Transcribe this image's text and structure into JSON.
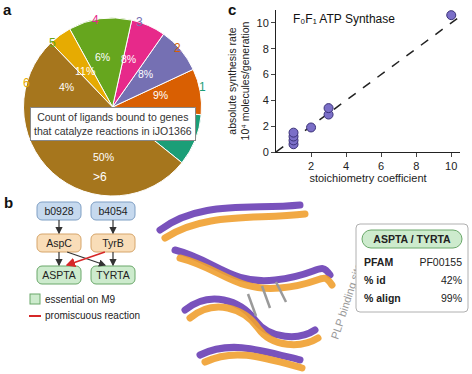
{
  "chart_data": [
    {
      "type": "pie",
      "panel": "a",
      "categories": [
        "1",
        "2",
        "3",
        "4",
        "5",
        "6",
        ">6"
      ],
      "values": [
        9,
        8,
        8,
        6,
        11,
        4,
        50
      ],
      "value_labels": [
        "9%",
        "8%",
        "8%",
        "6%",
        "11%",
        "4%",
        "50%"
      ],
      "colors": [
        "#1b9e77",
        "#d95f02",
        "#7570b3",
        "#e7298a",
        "#66a61e",
        "#e6ab02",
        "#a6761d"
      ],
      "annotations": [
        "Count of ligands bound to genes",
        "that catalyze reactions in iJO1366"
      ]
    },
    {
      "type": "scatter",
      "panel": "c",
      "title": "F₀F₁ ATP Synthase",
      "x": [
        1,
        1,
        1,
        1,
        2,
        3,
        3,
        10
      ],
      "values": [
        0.6,
        0.9,
        1.2,
        1.5,
        1.9,
        2.9,
        3.4,
        10.6
      ],
      "xlabel": "stoichiometry coefficient",
      "ylabel": [
        "absolute synthesis rate",
        "10⁴ molecules/generation"
      ],
      "xlim": [
        0,
        10.5
      ],
      "ylim": [
        0,
        11
      ],
      "xticks": [
        2,
        4,
        6,
        8,
        10
      ],
      "yticks": [
        0,
        2,
        4,
        6,
        8,
        10
      ],
      "color": "#7b6fc8",
      "marker": "circle",
      "line_style": "dashed",
      "grid": false
    }
  ],
  "diagram": {
    "panel": "b",
    "genes": [
      "b0928",
      "b4054"
    ],
    "enzymes": [
      "AspC",
      "TyrB"
    ],
    "reactions": [
      "ASPTA",
      "TYRTA"
    ],
    "edges": [
      {
        "from": "b0928",
        "to": "AspC"
      },
      {
        "from": "b4054",
        "to": "TyrB"
      },
      {
        "from": "AspC",
        "to": "ASPTA"
      },
      {
        "from": "TyrB",
        "to": "TYRTA"
      },
      {
        "from": "AspC",
        "to": "TYRTA"
      },
      {
        "from": "TyrB",
        "to": "ASPTA",
        "promiscuous": true
      }
    ],
    "legend": {
      "essential": "essential on M9",
      "promiscuous": "promiscuous reaction"
    },
    "structure_label": "PLP binding site",
    "info": {
      "title": "ASPTA / TYRTA",
      "rows": [
        [
          "PFAM",
          "PF00155"
        ],
        [
          "% id",
          "42%"
        ],
        [
          "% align",
          "99%"
        ]
      ]
    }
  }
}
